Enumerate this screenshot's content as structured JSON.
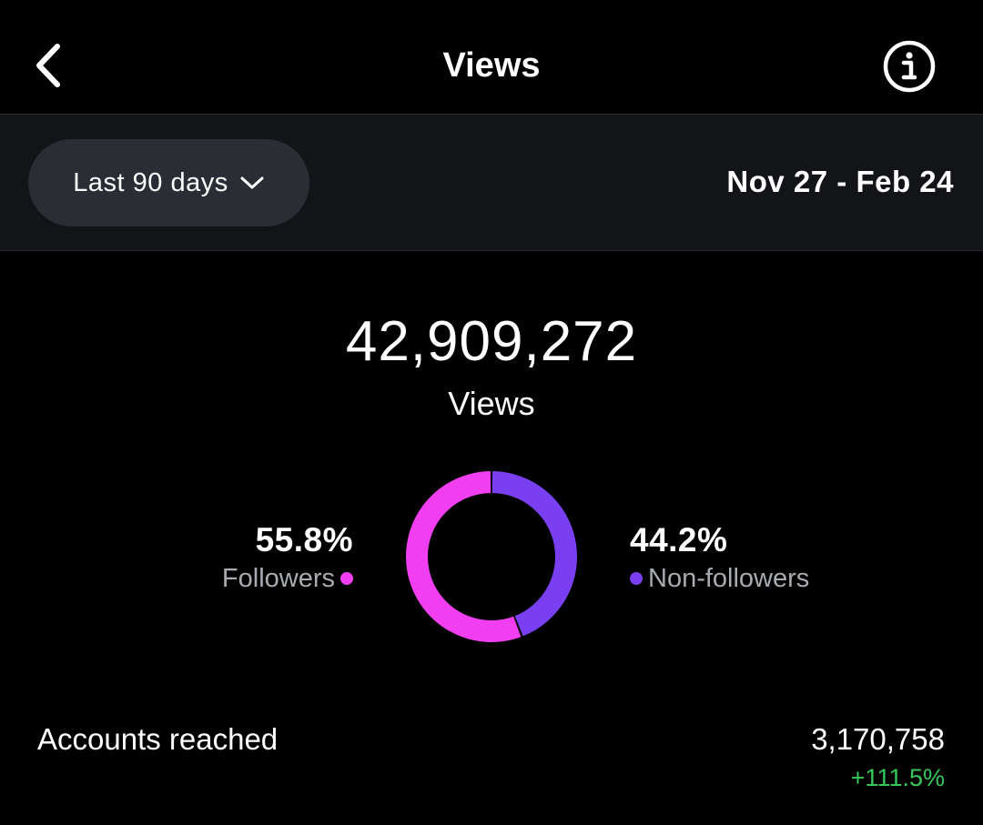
{
  "header": {
    "title": "Views",
    "back_icon": "chevron-left-icon",
    "info_icon": "info-icon"
  },
  "filter": {
    "range_label": "Last 90 days",
    "dropdown_icon": "chevron-down-icon",
    "date_range": "Nov 27 - Feb 24"
  },
  "summary": {
    "total": "42,909,272",
    "label": "Views"
  },
  "chart_data": {
    "type": "pie",
    "categories": [
      "Followers",
      "Non-followers"
    ],
    "values": [
      55.8,
      44.2
    ],
    "colors": [
      "#f03ef0",
      "#7b3ff2"
    ],
    "labels": [
      "55.8%",
      "44.2%"
    ]
  },
  "breakdown": {
    "followers": {
      "pct": "55.8%",
      "label": "Followers",
      "color": "#f03ef0"
    },
    "non_followers": {
      "pct": "44.2%",
      "label": "Non-followers",
      "color": "#7b3ff2"
    }
  },
  "accounts_reached": {
    "label": "Accounts reached",
    "value": "3,170,758",
    "change": "+111.5%",
    "change_color": "#34c759"
  }
}
